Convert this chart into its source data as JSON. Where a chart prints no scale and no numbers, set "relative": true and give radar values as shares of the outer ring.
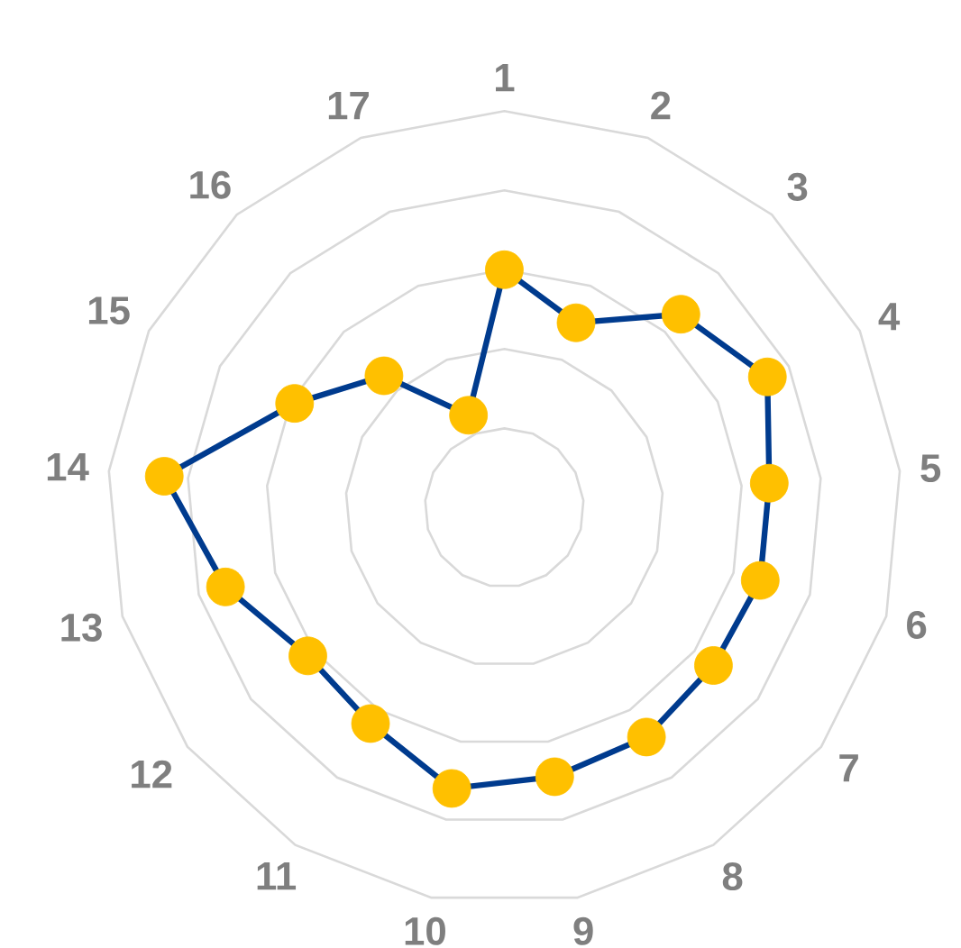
{
  "chart_data": {
    "type": "radar",
    "relative": true,
    "grid": true,
    "marker": "circle",
    "line_style": "solid",
    "categories": [
      "1",
      "2",
      "3",
      "4",
      "5",
      "6",
      "7",
      "8",
      "9",
      "10",
      "11",
      "12",
      "13",
      "14",
      "15",
      "16",
      "17"
    ],
    "series": [
      {
        "color": "#003b8e",
        "colors": [
          "#ffc000",
          "#ffc000",
          "#ffc000",
          "#ffc000",
          "#ffc000",
          "#ffc000",
          "#ffc000",
          "#ffc000",
          "#ffc000",
          "#ffc000",
          "#ffc000",
          "#ffc000",
          "#ffc000",
          "#ffc000",
          "#ffc000",
          "#ffc000",
          "#ffc000"
        ],
        "values": [
          0.6,
          0.5,
          0.66,
          0.74,
          0.67,
          0.67,
          0.66,
          0.68,
          0.69,
          0.72,
          0.64,
          0.62,
          0.73,
          0.86,
          0.59,
          0.45,
          0.25
        ]
      }
    ]
  }
}
